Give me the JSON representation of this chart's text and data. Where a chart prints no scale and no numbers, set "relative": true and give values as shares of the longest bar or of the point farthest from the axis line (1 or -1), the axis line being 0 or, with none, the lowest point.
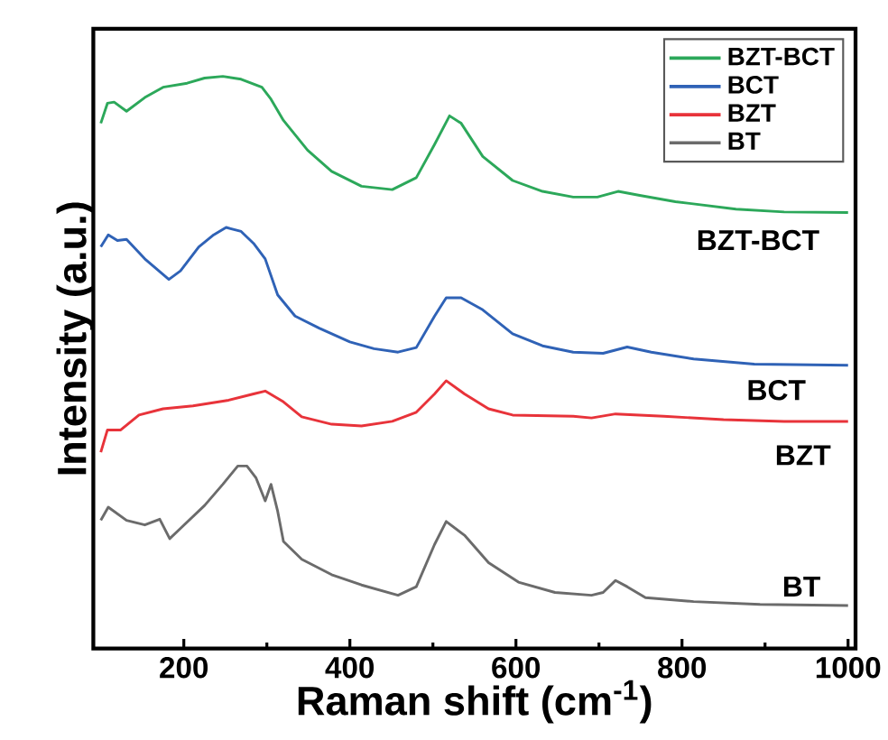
{
  "chart_data": {
    "type": "line",
    "relative": true,
    "xlabel": "Raman shift (cm$^{-1}$)",
    "ylabel": "Intensity (a.u.)",
    "xlim": [
      91,
      1009
    ],
    "xticks": [
      200,
      400,
      600,
      800,
      1000
    ],
    "grid": false,
    "legend": "top right",
    "marker": "none",
    "line_style": "solid",
    "annotations": [
      "BZT-BCT",
      "BCT",
      "BZT",
      "BT"
    ],
    "series": [
      {
        "name": "BZT-BCT",
        "color": "#2ca85a",
        "x": [
          100,
          108,
          116,
          131,
          153,
          175,
          204,
          225,
          247,
          269,
          294,
          305,
          320,
          349,
          378,
          414,
          451,
          480,
          502,
          520,
          534,
          560,
          596,
          632,
          669,
          698,
          723,
          749,
          792,
          865,
          923,
          1000
        ],
        "values": [
          0.918,
          0.953,
          0.955,
          0.939,
          0.963,
          0.981,
          0.988,
          0.997,
          1.0,
          0.995,
          0.981,
          0.96,
          0.923,
          0.871,
          0.834,
          0.808,
          0.802,
          0.823,
          0.881,
          0.931,
          0.918,
          0.86,
          0.818,
          0.799,
          0.789,
          0.789,
          0.799,
          0.792,
          0.781,
          0.768,
          0.763,
          0.762
        ]
      },
      {
        "name": "BCT",
        "color": "#2f62b6",
        "x": [
          100,
          109,
          120,
          131,
          153,
          182,
          196,
          218,
          236,
          251,
          269,
          284,
          298,
          313,
          334,
          363,
          400,
          429,
          458,
          480,
          502,
          516,
          534,
          560,
          596,
          632,
          669,
          705,
          734,
          763,
          814,
          887,
          1000
        ],
        "values": [
          0.702,
          0.723,
          0.713,
          0.715,
          0.681,
          0.645,
          0.66,
          0.702,
          0.723,
          0.736,
          0.729,
          0.708,
          0.681,
          0.618,
          0.581,
          0.56,
          0.536,
          0.524,
          0.518,
          0.526,
          0.581,
          0.613,
          0.613,
          0.592,
          0.55,
          0.529,
          0.518,
          0.516,
          0.527,
          0.518,
          0.506,
          0.497,
          0.495
        ]
      },
      {
        "name": "BZT",
        "color": "#e8333a",
        "x": [
          100,
          108,
          124,
          146,
          175,
          211,
          254,
          284,
          298,
          320,
          342,
          378,
          414,
          451,
          480,
          502,
          516,
          538,
          567,
          596,
          669,
          691,
          720,
          778,
          850,
          923,
          1000
        ],
        "values": [
          0.343,
          0.382,
          0.382,
          0.408,
          0.419,
          0.424,
          0.434,
          0.445,
          0.45,
          0.431,
          0.405,
          0.392,
          0.389,
          0.397,
          0.413,
          0.445,
          0.468,
          0.445,
          0.419,
          0.408,
          0.406,
          0.403,
          0.41,
          0.406,
          0.4,
          0.397,
          0.397
        ]
      },
      {
        "name": "BT",
        "color": "#6b6b6b",
        "x": [
          100,
          109,
          131,
          153,
          171,
          183,
          196,
          225,
          247,
          265,
          276,
          287,
          298,
          305,
          313,
          320,
          342,
          378,
          414,
          458,
          480,
          502,
          516,
          538,
          567,
          603,
          647,
          691,
          705,
          720,
          734,
          756,
          814,
          894,
          1000
        ],
        "values": [
          0.224,
          0.247,
          0.224,
          0.216,
          0.226,
          0.192,
          0.21,
          0.25,
          0.287,
          0.319,
          0.319,
          0.298,
          0.258,
          0.287,
          0.24,
          0.187,
          0.156,
          0.129,
          0.111,
          0.093,
          0.108,
          0.182,
          0.222,
          0.198,
          0.15,
          0.116,
          0.098,
          0.093,
          0.098,
          0.119,
          0.108,
          0.089,
          0.082,
          0.077,
          0.075
        ]
      }
    ]
  }
}
